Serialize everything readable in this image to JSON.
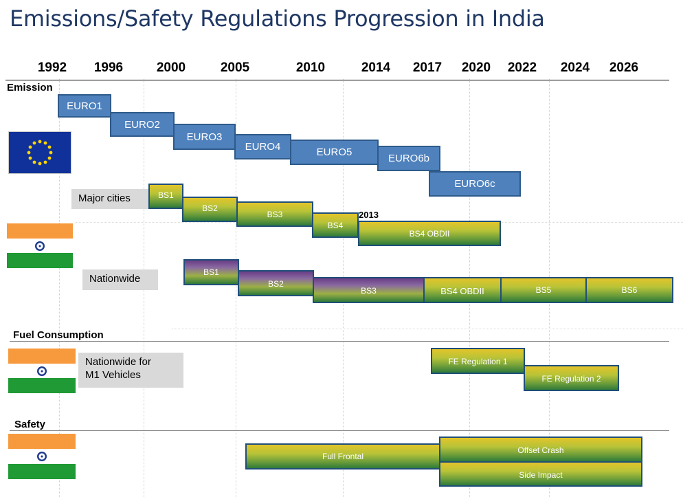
{
  "title": "Emissions/Safety Regulations Progression in India",
  "years": [
    "1992",
    "1996",
    "2000",
    "2005",
    "2010",
    "2014",
    "2017",
    "2020",
    "2022",
    "2024",
    "2026"
  ],
  "sections": {
    "emission": "Emission",
    "fuel": "Fuel  Consumption",
    "safety": "Safety"
  },
  "labels": {
    "major_cities": "Major  cities",
    "nationwide": "Nationwide",
    "nationwide_m1_line1": "Nationwide  for",
    "nationwide_m1_line2": "M1  Vehicles",
    "year_2013": "2013"
  },
  "euro": [
    "EURO1",
    "EURO2",
    "EURO3",
    "EURO4",
    "EURO5",
    "EURO6b",
    "EURO6c"
  ],
  "bs_major": [
    "BS1",
    "BS2",
    "BS3",
    "BS4",
    "BS4 OBDII"
  ],
  "bs_nationwide": [
    "BS1",
    "BS2",
    "BS3",
    "BS4 OBDII",
    "BS5",
    "BS6"
  ],
  "fuel": [
    "FE Regulation 1",
    "FE Regulation 2"
  ],
  "safety": [
    "Full Frontal",
    "Offset Crash",
    "Side Impact"
  ],
  "colors": {
    "title": "#1f3864",
    "euro_bar": "#4f81bd",
    "bs_gradient_top": "#e2c42a",
    "bs_gradient_bottom": "#2f7a3a",
    "bs_nationwide_top": "#6a3d86",
    "flag_saffron": "#f79a3e",
    "flag_green": "#1f9a34",
    "eu_blue": "#10319a"
  },
  "icons": {
    "eu_flag": "eu-flag-icon",
    "india_flag": "india-flag-icon"
  }
}
